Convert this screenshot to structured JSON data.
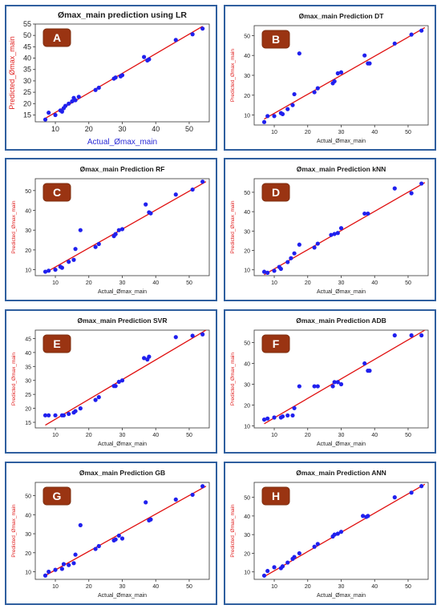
{
  "colors": {
    "panel_border": "#2f5f9f",
    "point": "#2020ee",
    "fit_line": "#e01010",
    "badge_fill": "#9a3412",
    "badge_stroke": "#7c2d0e",
    "ylabel_color": "#e02020",
    "xlabel_lr_color": "#2b2bd6"
  },
  "chart_data": [
    {
      "panel": "A",
      "type": "scatter",
      "title": "Ømax_main prediction using LR",
      "xlabel": "Actual_Ømax_main",
      "ylabel": "Predicted_Ømax_main",
      "xlim": [
        4,
        56
      ],
      "ylim": [
        12,
        55
      ],
      "xticks": [
        10,
        20,
        30,
        40,
        50
      ],
      "yticks": [
        15,
        20,
        25,
        30,
        35,
        40,
        45,
        50,
        55
      ],
      "fit_line": [
        [
          7,
          13.5
        ],
        [
          54,
          54
        ]
      ],
      "points": [
        [
          7,
          13
        ],
        [
          8,
          16
        ],
        [
          10,
          15
        ],
        [
          11.5,
          17
        ],
        [
          12,
          16.5
        ],
        [
          12.5,
          18
        ],
        [
          13,
          19
        ],
        [
          14,
          20
        ],
        [
          15,
          21
        ],
        [
          15.5,
          22.5
        ],
        [
          16,
          21.5
        ],
        [
          17,
          23
        ],
        [
          22,
          26
        ],
        [
          23,
          27
        ],
        [
          27.5,
          31
        ],
        [
          28,
          31.5
        ],
        [
          29.5,
          32
        ],
        [
          30,
          32.5
        ],
        [
          36.5,
          40.5
        ],
        [
          37.5,
          39
        ],
        [
          38,
          39.5
        ],
        [
          46,
          48
        ],
        [
          51,
          50.5
        ],
        [
          54,
          53
        ]
      ]
    },
    {
      "panel": "B",
      "type": "scatter",
      "title": "Ømax_main Prediction DT",
      "xlabel": "Actual_Ømax_main",
      "ylabel": "Predicted_Ømax_main",
      "xlim": [
        4,
        56
      ],
      "ylim": [
        5,
        55
      ],
      "xticks": [
        10,
        20,
        30,
        40,
        50
      ],
      "yticks": [
        10,
        20,
        30,
        40,
        50
      ],
      "fit_line": [
        [
          7,
          8
        ],
        [
          55,
          54
        ]
      ],
      "points": [
        [
          7,
          6.5
        ],
        [
          8,
          9.5
        ],
        [
          10,
          9.5
        ],
        [
          12,
          11
        ],
        [
          12.5,
          10.5
        ],
        [
          14,
          13
        ],
        [
          15.5,
          15
        ],
        [
          16,
          20.5
        ],
        [
          17.5,
          41
        ],
        [
          22,
          21.5
        ],
        [
          23,
          23.5
        ],
        [
          27.5,
          26
        ],
        [
          28,
          27
        ],
        [
          29,
          31
        ],
        [
          30,
          31.5
        ],
        [
          37,
          40
        ],
        [
          38,
          36
        ],
        [
          38.5,
          36
        ],
        [
          46,
          46
        ],
        [
          51,
          50.5
        ],
        [
          54,
          52.5
        ]
      ]
    },
    {
      "panel": "C",
      "type": "scatter",
      "title": "Ømax_main Prediction RF",
      "xlabel": "Actual_Ømax_main",
      "ylabel": "Predicted_Ømax_main",
      "xlim": [
        4,
        56
      ],
      "ylim": [
        7,
        56
      ],
      "xticks": [
        10,
        20,
        30,
        40,
        50
      ],
      "yticks": [
        10,
        20,
        30,
        40,
        50
      ],
      "fit_line": [
        [
          7,
          8.5
        ],
        [
          55,
          54.5
        ]
      ],
      "points": [
        [
          7,
          9
        ],
        [
          8,
          9.5
        ],
        [
          10,
          10
        ],
        [
          11.5,
          11.5
        ],
        [
          12,
          11
        ],
        [
          14,
          14
        ],
        [
          15.5,
          15
        ],
        [
          16,
          20.5
        ],
        [
          17.5,
          30
        ],
        [
          22,
          21.5
        ],
        [
          23,
          23
        ],
        [
          27.5,
          27
        ],
        [
          28,
          28
        ],
        [
          29,
          30
        ],
        [
          30,
          30.5
        ],
        [
          37,
          43
        ],
        [
          38,
          39
        ],
        [
          38.5,
          38.5
        ],
        [
          46,
          48
        ],
        [
          51,
          50.5
        ],
        [
          54,
          54.5
        ]
      ]
    },
    {
      "panel": "D",
      "type": "scatter",
      "title": "Ømax_main Prediction kNN",
      "xlabel": "Actual_Ømax_main",
      "ylabel": "Predicted_Ømax_main",
      "xlim": [
        4,
        56
      ],
      "ylim": [
        7,
        57
      ],
      "xticks": [
        10,
        20,
        30,
        40,
        50
      ],
      "yticks": [
        10,
        20,
        30,
        40,
        50
      ],
      "fit_line": [
        [
          7,
          7.5
        ],
        [
          55,
          55
        ]
      ],
      "points": [
        [
          7,
          9
        ],
        [
          8,
          8.5
        ],
        [
          10,
          9.5
        ],
        [
          11.5,
          11.5
        ],
        [
          12,
          10.5
        ],
        [
          14,
          14
        ],
        [
          15,
          16
        ],
        [
          16,
          18.5
        ],
        [
          17.5,
          23
        ],
        [
          22,
          21.5
        ],
        [
          23,
          23.5
        ],
        [
          27,
          28
        ],
        [
          28,
          28.5
        ],
        [
          29,
          29
        ],
        [
          30,
          31.5
        ],
        [
          37,
          39
        ],
        [
          38,
          39
        ],
        [
          46,
          52
        ],
        [
          51,
          49.5
        ],
        [
          54,
          54.5
        ]
      ]
    },
    {
      "panel": "E",
      "type": "scatter",
      "title": "Ømax_main Prediction SVR",
      "xlabel": "Actual_Ømax_main",
      "ylabel": "Predicted_Ømax_main",
      "xlim": [
        4,
        56
      ],
      "ylim": [
        13,
        48
      ],
      "xticks": [
        10,
        20,
        30,
        40,
        50
      ],
      "yticks": [
        15,
        20,
        25,
        30,
        35,
        40,
        45
      ],
      "fit_line": [
        [
          7,
          14
        ],
        [
          55,
          48
        ]
      ],
      "points": [
        [
          7,
          17.5
        ],
        [
          8,
          17.5
        ],
        [
          10,
          17.5
        ],
        [
          12,
          17.5
        ],
        [
          12.5,
          17.5
        ],
        [
          14,
          18
        ],
        [
          15.5,
          18.5
        ],
        [
          16,
          19
        ],
        [
          17.5,
          20
        ],
        [
          22,
          23
        ],
        [
          23,
          24
        ],
        [
          27.5,
          28
        ],
        [
          28,
          28
        ],
        [
          29,
          29.5
        ],
        [
          30,
          30
        ],
        [
          36.5,
          38
        ],
        [
          37.5,
          37.5
        ],
        [
          38,
          38.5
        ],
        [
          46,
          45.5
        ],
        [
          51,
          46
        ],
        [
          54,
          46.5
        ]
      ]
    },
    {
      "panel": "F",
      "type": "scatter",
      "title": "Ømax_main Prediction ADB",
      "xlabel": "Actual_Ømax_main",
      "ylabel": "Predicted_Ømax_main",
      "xlim": [
        4,
        56
      ],
      "ylim": [
        9,
        56
      ],
      "xticks": [
        10,
        20,
        30,
        40,
        50
      ],
      "yticks": [
        10,
        20,
        30,
        40,
        50
      ],
      "fit_line": [
        [
          7,
          11
        ],
        [
          55,
          56
        ]
      ],
      "points": [
        [
          7,
          13
        ],
        [
          8,
          13.5
        ],
        [
          10,
          14
        ],
        [
          12,
          14
        ],
        [
          12.5,
          14.5
        ],
        [
          14,
          15
        ],
        [
          15.5,
          15
        ],
        [
          16,
          18.5
        ],
        [
          17.5,
          29
        ],
        [
          22,
          29
        ],
        [
          23,
          29
        ],
        [
          27.5,
          29
        ],
        [
          28,
          31
        ],
        [
          29,
          31
        ],
        [
          30,
          30
        ],
        [
          37,
          40
        ],
        [
          38,
          36.5
        ],
        [
          38.5,
          36.5
        ],
        [
          46,
          53.5
        ],
        [
          51,
          53.5
        ],
        [
          54,
          53.5
        ]
      ]
    },
    {
      "panel": "G",
      "type": "scatter",
      "title": "Ømax_main Prediction GB",
      "xlabel": "Actual_Ømax_main",
      "ylabel": "Predicted_Ømax_main",
      "xlim": [
        4,
        56
      ],
      "ylim": [
        6,
        57
      ],
      "xticks": [
        10,
        20,
        30,
        40,
        50
      ],
      "yticks": [
        10,
        20,
        30,
        40,
        50
      ],
      "fit_line": [
        [
          7,
          8
        ],
        [
          55,
          55
        ]
      ],
      "points": [
        [
          7,
          8
        ],
        [
          8,
          10
        ],
        [
          10,
          11
        ],
        [
          12,
          11.5
        ],
        [
          12.5,
          14
        ],
        [
          14,
          13.5
        ],
        [
          15.5,
          14.5
        ],
        [
          16,
          19
        ],
        [
          17.5,
          34.5
        ],
        [
          22,
          22
        ],
        [
          23,
          23.5
        ],
        [
          27.5,
          26.5
        ],
        [
          28,
          27
        ],
        [
          29,
          29
        ],
        [
          30,
          27.5
        ],
        [
          37,
          46.5
        ],
        [
          38,
          37
        ],
        [
          38.5,
          37.5
        ],
        [
          46,
          48
        ],
        [
          51,
          50.5
        ],
        [
          54,
          55
        ]
      ]
    },
    {
      "panel": "H",
      "type": "scatter",
      "title": "Ømax_main Prediction ANN",
      "xlabel": "Actual_Ømax_main",
      "ylabel": "Predicted_Ømax_main",
      "xlim": [
        4,
        56
      ],
      "ylim": [
        6,
        58
      ],
      "xticks": [
        10,
        20,
        30,
        40,
        50
      ],
      "yticks": [
        10,
        20,
        30,
        40,
        50
      ],
      "fit_line": [
        [
          7,
          7.5
        ],
        [
          55,
          57
        ]
      ],
      "points": [
        [
          7,
          8
        ],
        [
          8,
          10.5
        ],
        [
          10,
          12.5
        ],
        [
          12,
          12
        ],
        [
          12.5,
          13
        ],
        [
          14,
          15
        ],
        [
          15.5,
          17
        ],
        [
          16,
          18
        ],
        [
          17.5,
          20
        ],
        [
          22,
          23.5
        ],
        [
          23,
          25
        ],
        [
          27.5,
          29
        ],
        [
          28,
          30
        ],
        [
          29,
          30.5
        ],
        [
          30,
          31.5
        ],
        [
          36.5,
          40
        ],
        [
          37.5,
          39.5
        ],
        [
          38,
          40
        ],
        [
          46,
          50
        ],
        [
          51,
          52.5
        ],
        [
          54,
          56
        ]
      ]
    }
  ]
}
